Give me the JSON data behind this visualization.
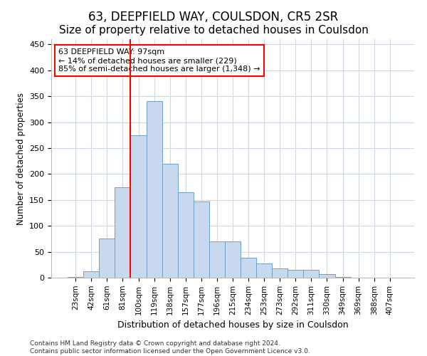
{
  "title1": "63, DEEPFIELD WAY, COULSDON, CR5 2SR",
  "title2": "Size of property relative to detached houses in Coulsdon",
  "xlabel": "Distribution of detached houses by size in Coulsdon",
  "ylabel": "Number of detached properties",
  "categories": [
    "23sqm",
    "42sqm",
    "61sqm",
    "81sqm",
    "100sqm",
    "119sqm",
    "138sqm",
    "157sqm",
    "177sqm",
    "196sqm",
    "215sqm",
    "234sqm",
    "253sqm",
    "273sqm",
    "292sqm",
    "311sqm",
    "330sqm",
    "349sqm",
    "369sqm",
    "388sqm",
    "407sqm"
  ],
  "values": [
    2,
    13,
    75,
    175,
    275,
    340,
    220,
    165,
    147,
    70,
    70,
    38,
    28,
    18,
    15,
    15,
    7,
    2,
    0,
    0,
    0
  ],
  "bar_color": "#c9d9ed",
  "bar_edge_color": "#6fa0c8",
  "vline_color": "red",
  "vline_x_index": 4,
  "annotation_line1": "63 DEEPFIELD WAY: 97sqm",
  "annotation_line2": "← 14% of detached houses are smaller (229)",
  "annotation_line3": "85% of semi-detached houses are larger (1,348) →",
  "annotation_box_color": "white",
  "annotation_box_edge": "red",
  "ylim": [
    0,
    460
  ],
  "yticks": [
    0,
    50,
    100,
    150,
    200,
    250,
    300,
    350,
    400,
    450
  ],
  "footer1": "Contains HM Land Registry data © Crown copyright and database right 2024.",
  "footer2": "Contains public sector information licensed under the Open Government Licence v3.0.",
  "bg_color": "#ffffff",
  "plot_bg_color": "#ffffff",
  "grid_color": "#d0d8e8",
  "title1_fontsize": 12,
  "title2_fontsize": 11
}
